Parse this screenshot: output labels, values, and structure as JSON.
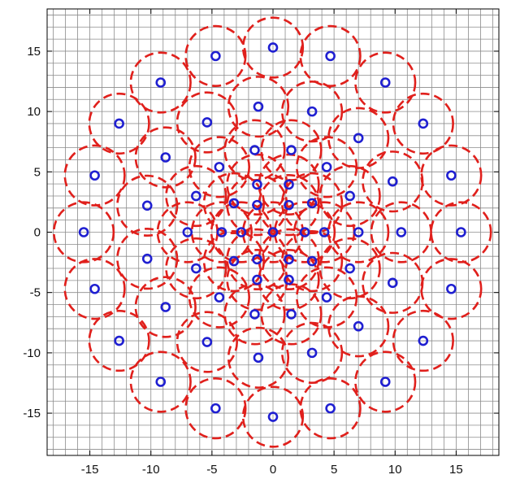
{
  "chart_data": {
    "type": "scatter",
    "title": "",
    "xlabel": "",
    "ylabel": "",
    "xlim": [
      -18.5,
      18.5
    ],
    "ylim": [
      -18.5,
      18.5
    ],
    "x_ticks": [
      -15,
      -10,
      -5,
      0,
      5,
      10,
      15
    ],
    "y_ticks": [
      -15,
      -10,
      -5,
      0,
      5,
      10,
      15
    ],
    "x_tick_labels": [
      "-15",
      "-10",
      "-5",
      "0",
      "5",
      "10",
      "15"
    ],
    "y_tick_labels": [
      "-15",
      "-10",
      "-5",
      "0",
      "5",
      "10",
      "15"
    ],
    "grid": true,
    "grid_step": 1,
    "colors": {
      "grid": "#8c8c8c",
      "center_marker": "#1f1fd1",
      "coverage_circle": "#e0201c",
      "axes": "#000000"
    },
    "coverage_radius": 2.45,
    "series": [
      {
        "marker": "circle",
        "points": [
          [
            0,
            0
          ],
          [
            2.6,
            0
          ],
          [
            1.3,
            2.25
          ],
          [
            -1.3,
            2.25
          ],
          [
            -2.6,
            0
          ],
          [
            -1.3,
            -2.25
          ],
          [
            1.3,
            -2.25
          ],
          [
            4.2,
            0
          ],
          [
            3.2,
            2.4
          ],
          [
            1.3,
            3.95
          ],
          [
            -1.3,
            3.95
          ],
          [
            -3.2,
            2.4
          ],
          [
            -4.2,
            0
          ],
          [
            -3.2,
            -2.4
          ],
          [
            -1.3,
            -3.95
          ],
          [
            1.3,
            -3.95
          ],
          [
            3.2,
            -2.4
          ],
          [
            7.0,
            0
          ],
          [
            6.3,
            3.0
          ],
          [
            4.4,
            5.4
          ],
          [
            1.5,
            6.8
          ],
          [
            -1.5,
            6.8
          ],
          [
            -4.4,
            5.4
          ],
          [
            -6.3,
            3.0
          ],
          [
            -7.0,
            0
          ],
          [
            -6.3,
            -3.0
          ],
          [
            -4.4,
            -5.4
          ],
          [
            -1.5,
            -6.8
          ],
          [
            1.5,
            -6.8
          ],
          [
            4.4,
            -5.4
          ],
          [
            6.3,
            -3.0
          ],
          [
            10.5,
            0
          ],
          [
            9.8,
            4.2
          ],
          [
            7.0,
            7.8
          ],
          [
            3.2,
            10.0
          ],
          [
            -1.2,
            10.4
          ],
          [
            -5.4,
            9.1
          ],
          [
            -8.8,
            6.2
          ],
          [
            -10.3,
            2.2
          ],
          [
            -10.3,
            -2.2
          ],
          [
            -8.8,
            -6.2
          ],
          [
            -5.4,
            -9.1
          ],
          [
            -1.2,
            -10.4
          ],
          [
            3.2,
            -10.0
          ],
          [
            7.0,
            -7.8
          ],
          [
            9.8,
            -4.2
          ],
          [
            15.4,
            0
          ],
          [
            14.6,
            4.7
          ],
          [
            12.3,
            9.0
          ],
          [
            9.2,
            12.4
          ],
          [
            4.7,
            14.6
          ],
          [
            0,
            15.3
          ],
          [
            -4.7,
            14.6
          ],
          [
            -9.2,
            12.4
          ],
          [
            -12.6,
            9.0
          ],
          [
            -14.6,
            4.7
          ],
          [
            -15.5,
            0
          ],
          [
            -14.6,
            -4.7
          ],
          [
            -12.6,
            -9.0
          ],
          [
            -9.2,
            -12.4
          ],
          [
            -4.7,
            -14.6
          ],
          [
            0,
            -15.3
          ],
          [
            4.7,
            -14.6
          ],
          [
            9.2,
            -12.4
          ],
          [
            12.3,
            -9.0
          ],
          [
            14.6,
            -4.7
          ]
        ]
      }
    ]
  }
}
